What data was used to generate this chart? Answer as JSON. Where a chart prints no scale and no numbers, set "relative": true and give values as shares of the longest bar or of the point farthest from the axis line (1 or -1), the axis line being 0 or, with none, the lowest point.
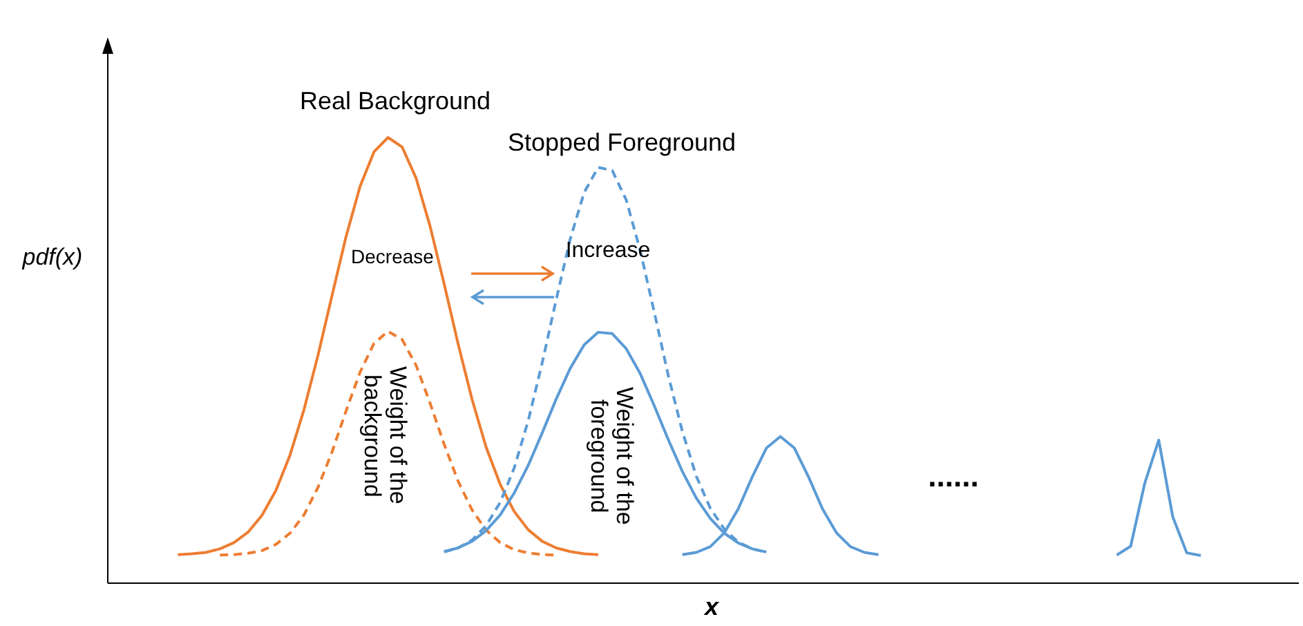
{
  "chart_data": {
    "type": "line",
    "relative": true,
    "xlabel": "x",
    "ylabel": "pdf(x)",
    "grid": false,
    "marker": "none",
    "categories": [
      null,
      null,
      null,
      null,
      null,
      null,
      null,
      null,
      null,
      null,
      null,
      null,
      null,
      null,
      null,
      null,
      null,
      null,
      null,
      null,
      null,
      null,
      null,
      null,
      null,
      null,
      null,
      null,
      null,
      null,
      null,
      null,
      null,
      null,
      null,
      null,
      null,
      null,
      null,
      null,
      null,
      null,
      null,
      null,
      null,
      null,
      null,
      null,
      null,
      null,
      null,
      null,
      null,
      null,
      null,
      null,
      null,
      null,
      null,
      null,
      null,
      null,
      null,
      null,
      null,
      null,
      null,
      null,
      null,
      null,
      null,
      null,
      null,
      null,
      null,
      null,
      null,
      null,
      null,
      null,
      null,
      null,
      null,
      null,
      null,
      null
    ],
    "series": [
      {
        "name": "Real Background",
        "color": "#ed7d31",
        "line_style": "solid",
        "values": [
          null,
          null,
          null,
          null,
          null,
          0.064,
          0.066,
          0.069,
          0.077,
          0.091,
          0.114,
          0.152,
          0.208,
          0.287,
          0.389,
          0.511,
          0.645,
          0.777,
          0.89,
          0.968,
          1.0,
          0.979,
          0.909,
          0.801,
          0.672,
          0.537,
          0.412,
          0.305,
          0.222,
          0.161,
          0.12,
          0.094,
          0.079,
          0.071,
          0.066,
          0.064,
          null,
          null,
          null,
          null,
          null,
          null,
          null,
          null,
          null,
          null,
          null,
          null,
          null,
          null,
          null,
          null,
          null,
          null,
          null,
          null,
          null,
          null,
          null,
          null,
          null,
          null,
          null,
          null,
          null,
          null,
          null,
          null,
          null,
          null,
          null,
          null,
          null,
          null,
          null,
          null,
          null,
          null,
          null,
          null,
          null,
          null,
          null,
          null,
          null,
          null
        ]
      },
      {
        "name": "Weight of the background",
        "color": "#ed7d31",
        "line_style": "dashed",
        "values": [
          null,
          null,
          null,
          null,
          null,
          null,
          null,
          null,
          0.063,
          0.064,
          0.067,
          0.073,
          0.087,
          0.112,
          0.153,
          0.215,
          0.294,
          0.386,
          0.473,
          0.538,
          0.565,
          0.547,
          0.489,
          0.404,
          0.312,
          0.229,
          0.164,
          0.119,
          0.091,
          0.075,
          0.068,
          0.064,
          0.063,
          null,
          null,
          null,
          null,
          null,
          null,
          null,
          null,
          null,
          null,
          null,
          null,
          null,
          null,
          null,
          null,
          null,
          null,
          null,
          null,
          null,
          null,
          null,
          null,
          null,
          null,
          null,
          null,
          null,
          null,
          null,
          null,
          null,
          null,
          null,
          null,
          null,
          null,
          null,
          null,
          null,
          null,
          null,
          null,
          null,
          null,
          null,
          null,
          null,
          null,
          null,
          null,
          null
        ]
      },
      {
        "name": "Stopped Foreground",
        "color": "#5b9bd5",
        "line_style": "dashed",
        "values": [
          null,
          null,
          null,
          null,
          null,
          null,
          null,
          null,
          null,
          null,
          null,
          null,
          null,
          null,
          null,
          null,
          null,
          null,
          null,
          null,
          null,
          null,
          null,
          null,
          0.07,
          0.079,
          0.097,
          0.129,
          0.181,
          0.258,
          0.364,
          0.494,
          0.636,
          0.772,
          0.877,
          0.933,
          0.926,
          0.86,
          0.746,
          0.608,
          0.466,
          0.341,
          0.24,
          0.168,
          0.121,
          0.092,
          0.077,
          0.069,
          null,
          null,
          null,
          null,
          null,
          null,
          null,
          null,
          null,
          null,
          null,
          null,
          null,
          null,
          null,
          null,
          null,
          null,
          null,
          null,
          null,
          null,
          null,
          null,
          null,
          null,
          null,
          null,
          null,
          null,
          null,
          null,
          null,
          null,
          null,
          null,
          null,
          null
        ]
      },
      {
        "name": "Weight of the foreground",
        "color": "#5b9bd5",
        "line_style": "solid",
        "values": [
          null,
          null,
          null,
          null,
          null,
          null,
          null,
          null,
          null,
          null,
          null,
          null,
          null,
          null,
          null,
          null,
          null,
          null,
          null,
          null,
          null,
          null,
          null,
          null,
          0.071,
          0.079,
          0.094,
          0.118,
          0.153,
          0.202,
          0.264,
          0.337,
          0.413,
          0.482,
          0.535,
          0.563,
          0.56,
          0.526,
          0.47,
          0.398,
          0.322,
          0.251,
          0.191,
          0.145,
          0.112,
          0.09,
          0.077,
          0.07,
          null,
          null,
          null,
          null,
          null,
          null,
          null,
          null,
          null,
          null,
          null,
          null,
          null,
          null,
          null,
          null,
          null,
          null,
          null,
          null,
          null,
          null,
          null,
          null,
          null,
          null,
          null,
          null,
          null,
          null,
          null,
          null,
          null,
          null,
          null,
          null,
          null,
          null
        ]
      },
      {
        "color": "#5b9bd5",
        "line_style": "solid",
        "values": [
          null,
          null,
          null,
          null,
          null,
          null,
          null,
          null,
          null,
          null,
          null,
          null,
          null,
          null,
          null,
          null,
          null,
          null,
          null,
          null,
          null,
          null,
          null,
          null,
          null,
          null,
          null,
          null,
          null,
          null,
          null,
          null,
          null,
          null,
          null,
          null,
          null,
          null,
          null,
          null,
          null,
          0.064,
          0.069,
          0.082,
          0.113,
          0.167,
          0.239,
          0.303,
          0.329,
          0.303,
          0.239,
          0.167,
          0.113,
          0.082,
          0.069,
          0.064,
          null,
          null,
          null,
          null,
          null,
          null,
          null,
          null,
          null,
          null,
          null,
          null,
          null,
          null,
          null,
          null,
          null,
          null,
          null,
          null,
          null,
          null,
          null,
          null,
          null,
          null,
          null,
          null,
          null,
          null
        ]
      },
      {
        "color": "#5b9bd5",
        "line_style": "solid",
        "values": [
          null,
          null,
          null,
          null,
          null,
          null,
          null,
          null,
          null,
          null,
          null,
          null,
          null,
          null,
          null,
          null,
          null,
          null,
          null,
          null,
          null,
          null,
          null,
          null,
          null,
          null,
          null,
          null,
          null,
          null,
          null,
          null,
          null,
          null,
          null,
          null,
          null,
          null,
          null,
          null,
          null,
          null,
          null,
          null,
          null,
          null,
          null,
          null,
          null,
          null,
          null,
          null,
          null,
          null,
          null,
          null,
          null,
          null,
          null,
          null,
          null,
          null,
          null,
          null,
          null,
          null,
          null,
          null,
          null,
          null,
          null,
          null,
          0.063,
          0.083,
          0.224,
          0.321,
          0.149,
          0.068,
          0.062,
          null,
          null,
          null,
          null,
          null,
          null,
          null
        ]
      }
    ],
    "annotations": [
      "Decrease",
      "Increase",
      "......"
    ]
  }
}
